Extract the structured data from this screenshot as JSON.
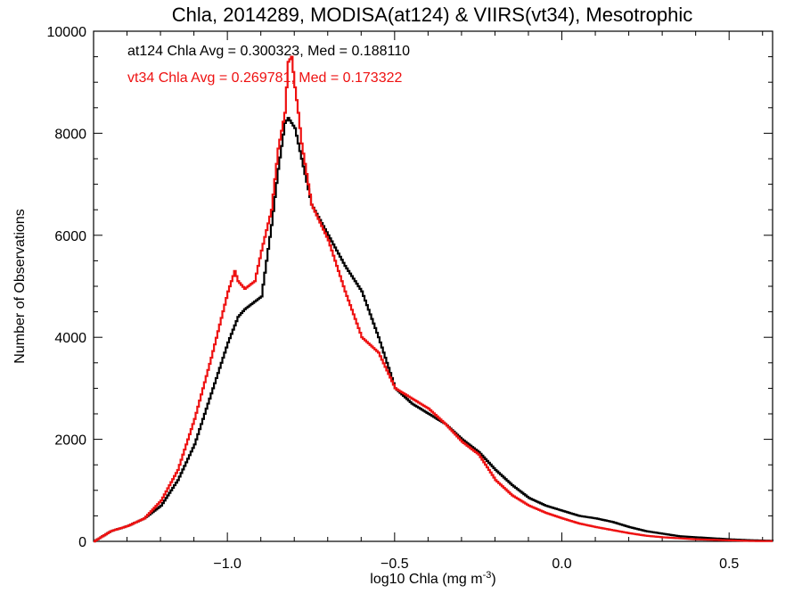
{
  "chart_data": {
    "type": "line",
    "title": "Chla, 2014289, MODISA(at124) & VIIRS(vt34), Mesotrophic",
    "xlabel": "log10 Chla (mg m",
    "xlabel_sup": "-3",
    "xlabel_end": ")",
    "ylabel": "Number of Observations",
    "xlim": [
      -1.4,
      0.63
    ],
    "ylim": [
      0,
      10000
    ],
    "xticks": [
      -1.0,
      -0.5,
      0.0,
      0.5
    ],
    "xtick_labels": [
      "−1.0",
      "−0.5",
      "0.0",
      "0.5"
    ],
    "yticks": [
      0,
      2000,
      4000,
      6000,
      8000,
      10000
    ],
    "ytick_labels": [
      "0",
      "2000",
      "4000",
      "6000",
      "8000",
      "10000"
    ],
    "grid": false,
    "annotations": [
      {
        "text": "at124 Chla Avg = 0.300323, Med = 0.188110",
        "color": "#000000"
      },
      {
        "text": "vt34 Chla Avg = 0.269781, Med = 0.173322",
        "color": "#ee1111"
      }
    ],
    "series": [
      {
        "color": "#000000",
        "x": [
          -1.4,
          -1.35,
          -1.3,
          -1.25,
          -1.2,
          -1.15,
          -1.1,
          -1.05,
          -1.0,
          -0.97,
          -0.95,
          -0.9,
          -0.87,
          -0.85,
          -0.83,
          -0.82,
          -0.81,
          -0.8,
          -0.79,
          -0.78,
          -0.75,
          -0.7,
          -0.65,
          -0.6,
          -0.55,
          -0.5,
          -0.45,
          -0.4,
          -0.35,
          -0.3,
          -0.25,
          -0.2,
          -0.15,
          -0.1,
          -0.05,
          0.0,
          0.05,
          0.1,
          0.15,
          0.2,
          0.25,
          0.3,
          0.35,
          0.4,
          0.45,
          0.5,
          0.55,
          0.6,
          0.63
        ],
        "y": [
          0,
          200,
          300,
          450,
          700,
          1200,
          1900,
          2900,
          3900,
          4400,
          4550,
          4800,
          6200,
          7300,
          8200,
          8300,
          8200,
          8100,
          7800,
          7500,
          6600,
          6000,
          5400,
          4900,
          4000,
          3000,
          2700,
          2500,
          2300,
          2000,
          1750,
          1400,
          1100,
          850,
          700,
          600,
          500,
          450,
          380,
          280,
          200,
          150,
          100,
          80,
          60,
          40,
          25,
          15,
          10
        ]
      },
      {
        "color": "#ee1111",
        "x": [
          -1.4,
          -1.35,
          -1.3,
          -1.25,
          -1.2,
          -1.15,
          -1.1,
          -1.05,
          -1.0,
          -0.98,
          -0.97,
          -0.95,
          -0.92,
          -0.9,
          -0.87,
          -0.85,
          -0.83,
          -0.82,
          -0.81,
          -0.8,
          -0.79,
          -0.78,
          -0.75,
          -0.7,
          -0.65,
          -0.6,
          -0.55,
          -0.5,
          -0.45,
          -0.4,
          -0.35,
          -0.3,
          -0.25,
          -0.2,
          -0.15,
          -0.1,
          -0.05,
          0.0,
          0.05,
          0.1,
          0.15,
          0.2,
          0.25,
          0.3,
          0.35,
          0.4,
          0.45,
          0.5,
          0.55,
          0.6,
          0.63
        ],
        "y": [
          0,
          200,
          300,
          450,
          800,
          1400,
          2400,
          3600,
          4900,
          5300,
          5100,
          4950,
          5100,
          5700,
          6500,
          7700,
          8400,
          9400,
          9500,
          8900,
          8400,
          7800,
          6600,
          5900,
          4900,
          4000,
          3700,
          3000,
          2800,
          2600,
          2300,
          1950,
          1700,
          1200,
          900,
          700,
          560,
          450,
          350,
          280,
          220,
          160,
          110,
          80,
          60,
          40,
          30,
          20,
          10,
          5,
          5
        ]
      }
    ]
  }
}
